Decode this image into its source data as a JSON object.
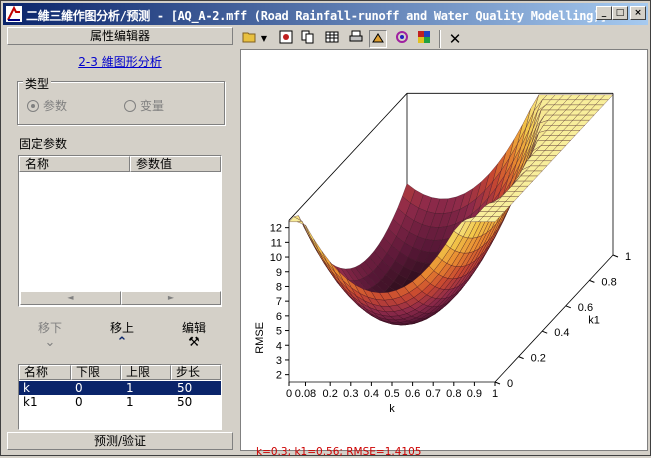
{
  "window": {
    "title": "二維三維作图分析/预测 - [AQ_A-2.mff (Road Rainfall-runoff and Water Quality Modelling)]",
    "controls": [
      "_",
      "□",
      "×"
    ]
  },
  "left_panel": {
    "header": "属性编辑器",
    "link": "2-3 維图形分析",
    "type_group": {
      "label": "类型",
      "options": [
        {
          "label": "参数",
          "selected": true
        },
        {
          "label": "变量",
          "selected": false
        }
      ]
    },
    "fixed_params": {
      "label": "固定参数",
      "columns": [
        "名称",
        "参数值"
      ],
      "rows": []
    },
    "actions": {
      "move_down": "移下",
      "move_up": "移上",
      "edit": "编辑"
    },
    "param_table": {
      "columns": [
        "名称",
        "下限",
        "上限",
        "步长"
      ],
      "rows": [
        {
          "name": "k",
          "lower": "0",
          "upper": "1",
          "step": "50",
          "selected": true
        },
        {
          "name": "k1",
          "lower": "0",
          "upper": "1",
          "step": "50",
          "selected": false
        }
      ]
    },
    "footer": "预测/验证"
  },
  "toolbar": {
    "tools": [
      "open-icon",
      "dropdown-arrow-icon",
      "image-icon",
      "copy-icon",
      "table-icon",
      "print-icon",
      "rotate-3d-icon",
      "contour-icon",
      "colormap-icon",
      "close-x-icon"
    ]
  },
  "status_text": "k=0.3; k1=0.56; RMSE=1.4105",
  "chart_data": {
    "type": "surface3d",
    "title": "",
    "xlabel": "k",
    "ylabel": "k1",
    "zlabel": "RMSE",
    "x_ticks": [
      "0",
      "0.08",
      "0.2",
      "0.3",
      "0.4",
      "0.5",
      "0.6",
      "0.7",
      "0.8",
      "0.9",
      "1"
    ],
    "y_ticks": [
      "0",
      "0.2",
      "0.4",
      "0.6",
      "0.8",
      "1"
    ],
    "z_ticks": [
      "2",
      "3",
      "4",
      "5",
      "6",
      "7",
      "8",
      "9",
      "10",
      "11",
      "12"
    ],
    "xlim": [
      0,
      1
    ],
    "ylim": [
      0,
      1
    ],
    "zlim": [
      1.5,
      12.5
    ],
    "minimum": {
      "k": 0.3,
      "k1": 0.56,
      "rmse": 1.4105
    },
    "corner_values": {
      "k0_k1_0": 10.1,
      "k1_k1_0": 6.2,
      "k0_k1_1": 10.6,
      "k1_k1_1": 12.4
    },
    "colormap": [
      "#1a0a10",
      "#5a1838",
      "#8e2a4a",
      "#c84830",
      "#e88a30",
      "#f2c84a",
      "#f8f0a0"
    ]
  }
}
